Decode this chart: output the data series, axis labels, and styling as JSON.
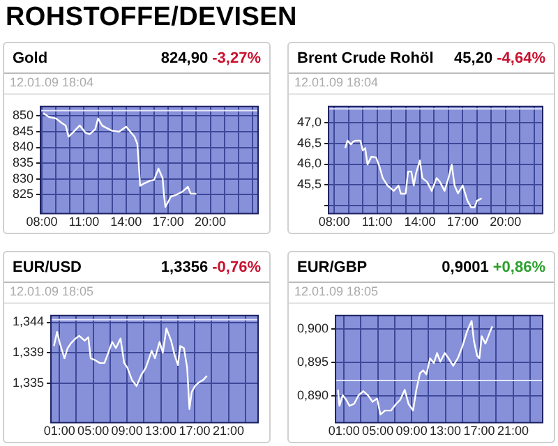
{
  "chart_data": [
    {
      "type": "other",
      "title": "ROHSTOFFE/DEVISEN"
    },
    {
      "type": "line",
      "title": "Gold",
      "subtitle": "12.01.09 18:04",
      "annotations": [
        "824,90",
        "-3,27%"
      ],
      "grid": true,
      "xlim": [
        7.9,
        23.4
      ],
      "xticks": [
        {
          "value": 8,
          "label": "08:00"
        },
        {
          "value": 9,
          "label": null
        },
        {
          "value": 10,
          "label": null
        },
        {
          "value": 11,
          "label": "11:00"
        },
        {
          "value": 12,
          "label": null
        },
        {
          "value": 13,
          "label": null
        },
        {
          "value": 14,
          "label": "14:00"
        },
        {
          "value": 15,
          "label": null
        },
        {
          "value": 16,
          "label": null
        },
        {
          "value": 17,
          "label": "17:00"
        },
        {
          "value": 18,
          "label": null
        },
        {
          "value": 19,
          "label": null
        },
        {
          "value": 20,
          "label": "20:00"
        },
        {
          "value": 21,
          "label": null
        },
        {
          "value": 22,
          "label": null
        },
        {
          "value": 23,
          "label": null
        }
      ],
      "ylim": [
        819,
        853
      ],
      "yticks": [
        825,
        830,
        835,
        840,
        845,
        850
      ],
      "ref_lines": [
        {
          "axis": "y",
          "value": 851.7,
          "color": "#e4e6f6"
        }
      ],
      "x": [
        8.1,
        8.5,
        9.0,
        9.4,
        9.7,
        9.9,
        10.2,
        10.7,
        11.1,
        11.4,
        11.8,
        12.0,
        12.3,
        13.0,
        13.5,
        14.0,
        14.3,
        14.6,
        14.8,
        14.9,
        15.0,
        15.3,
        15.7,
        16.0,
        16.3,
        16.6,
        16.7,
        16.8,
        17.2,
        17.6,
        18.0,
        18.4,
        18.6,
        19.0
      ],
      "series": [
        {
          "color": "#ffffff",
          "values": [
            850.9,
            849.7,
            849.2,
            847.8,
            846.9,
            843.4,
            844.7,
            847.0,
            844.7,
            844.2,
            845.8,
            849.2,
            846.9,
            845.3,
            845.0,
            846.6,
            845.0,
            843.4,
            841.1,
            834.8,
            827.8,
            828.6,
            829.4,
            829.7,
            833.3,
            830.2,
            824.7,
            821.1,
            824.4,
            825.0,
            825.9,
            827.5,
            825.3,
            825.3
          ]
        }
      ]
    },
    {
      "type": "line",
      "title": "Brent Crude Rohöl",
      "subtitle": "12.01.09 18:04",
      "annotations": [
        "45,20",
        "-4,64%"
      ],
      "grid": true,
      "xlim": [
        7.6,
        22.6
      ],
      "xticks": [
        {
          "value": 8,
          "label": "08:00"
        },
        {
          "value": 9,
          "label": null
        },
        {
          "value": 10,
          "label": null
        },
        {
          "value": 11,
          "label": "11:00"
        },
        {
          "value": 12,
          "label": null
        },
        {
          "value": 13,
          "label": null
        },
        {
          "value": 14,
          "label": "14:00"
        },
        {
          "value": 15,
          "label": null
        },
        {
          "value": 16,
          "label": null
        },
        {
          "value": 17,
          "label": "17:00"
        },
        {
          "value": 18,
          "label": null
        },
        {
          "value": 19,
          "label": null
        },
        {
          "value": 20,
          "label": "20:00"
        },
        {
          "value": 21,
          "label": null
        },
        {
          "value": 22,
          "label": null
        }
      ],
      "ylim": [
        44.8,
        47.4
      ],
      "yticks": [
        {
          "value": 45,
          "label": null
        },
        {
          "value": 45.5,
          "label": "45,5"
        },
        {
          "value": 46,
          "label": "46,0"
        },
        {
          "value": 46.5,
          "label": "46,5"
        },
        {
          "value": 47,
          "label": "47,0"
        }
      ],
      "ref_lines": [
        {
          "axis": "y",
          "value": 47.34,
          "color": "#e4e6f6"
        }
      ],
      "x": [
        8.77,
        8.93,
        9.17,
        9.33,
        9.5,
        9.83,
        10.0,
        10.17,
        10.33,
        10.6,
        10.93,
        11.17,
        11.4,
        11.73,
        12.17,
        12.5,
        12.67,
        13.0,
        13.17,
        13.4,
        13.57,
        13.73,
        14.0,
        14.17,
        14.5,
        14.83,
        15.17,
        15.4,
        15.73,
        16.0,
        16.23,
        16.43,
        16.67,
        17.0,
        17.33,
        17.6,
        17.83,
        18.0,
        18.33
      ],
      "series": [
        {
          "color": "#ffffff",
          "values": [
            46.39,
            46.57,
            46.48,
            46.55,
            46.57,
            46.57,
            46.33,
            46.39,
            45.99,
            46.18,
            46.16,
            45.94,
            45.66,
            45.48,
            45.35,
            45.48,
            45.28,
            45.28,
            45.82,
            45.82,
            45.48,
            45.78,
            46.09,
            45.66,
            45.57,
            45.35,
            45.66,
            45.57,
            45.35,
            45.66,
            45.99,
            45.48,
            45.29,
            45.48,
            45.11,
            44.95,
            44.95,
            45.11,
            45.17
          ]
        }
      ]
    },
    {
      "type": "line",
      "title": "EUR/USD",
      "subtitle": "12.01.09 18:05",
      "annotations": [
        "1,3356",
        "-0,76%"
      ],
      "grid": true,
      "xlim": [
        0,
        24.5
      ],
      "xticks": [
        {
          "value": 1,
          "label": "01:00"
        },
        {
          "value": 3,
          "label": null
        },
        {
          "value": 5,
          "label": "05:00"
        },
        {
          "value": 7,
          "label": null
        },
        {
          "value": 9,
          "label": "09:00"
        },
        {
          "value": 11,
          "label": null
        },
        {
          "value": 13,
          "label": "13:00"
        },
        {
          "value": 15,
          "label": null
        },
        {
          "value": 17,
          "label": "17:00"
        },
        {
          "value": 19,
          "label": null
        },
        {
          "value": 21,
          "label": "21:00"
        },
        {
          "value": 23,
          "label": null
        }
      ],
      "ylim": [
        1.3292,
        1.345
      ],
      "yticks": [
        {
          "value": 1.335,
          "label": "1,335"
        },
        {
          "value": 1.3395,
          "label": "1,339"
        },
        {
          "value": 1.344,
          "label": "1,344"
        }
      ],
      "ref_lines": [
        {
          "axis": "y",
          "value": 1.3444,
          "color": "#e4e6f6"
        }
      ],
      "x": [
        0.35,
        0.73,
        1.05,
        1.6,
        1.98,
        2.36,
        2.9,
        3.34,
        3.99,
        4.42,
        4.7,
        5.24,
        5.78,
        6.33,
        6.87,
        7.25,
        7.68,
        8.23,
        8.66,
        9.04,
        9.58,
        10.13,
        10.67,
        11.22,
        11.92,
        12.3,
        12.85,
        13.23,
        13.66,
        14.21,
        14.64,
        15.02,
        15.29,
        15.73,
        16.11,
        16.38,
        16.65,
        17.03,
        17.47,
        18.01,
        18.45
      ],
      "series": [
        {
          "color": "#ffffff",
          "values": [
            1.3405,
            1.3426,
            1.3409,
            1.3387,
            1.3402,
            1.3409,
            1.3416,
            1.342,
            1.3413,
            1.3418,
            1.3387,
            1.3384,
            1.338,
            1.338,
            1.3398,
            1.3411,
            1.3402,
            1.3416,
            1.338,
            1.3373,
            1.3355,
            1.3346,
            1.3362,
            1.3373,
            1.3398,
            1.3387,
            1.3411,
            1.3395,
            1.3431,
            1.3413,
            1.3391,
            1.3377,
            1.3405,
            1.3402,
            1.3373,
            1.3312,
            1.3337,
            1.3346,
            1.3351,
            1.3355,
            1.3361
          ]
        }
      ]
    },
    {
      "type": "line",
      "title": "EUR/GBP",
      "subtitle": "12.01.09 18:05",
      "annotations": [
        "0,9001",
        "+0,86%"
      ],
      "grid": true,
      "xlim": [
        0,
        24.5
      ],
      "xticks": [
        {
          "value": 1,
          "label": "01:00"
        },
        {
          "value": 3,
          "label": null
        },
        {
          "value": 5,
          "label": "05:00"
        },
        {
          "value": 7,
          "label": null
        },
        {
          "value": 9,
          "label": "09:00"
        },
        {
          "value": 11,
          "label": null
        },
        {
          "value": 13,
          "label": "13:00"
        },
        {
          "value": 15,
          "label": null
        },
        {
          "value": 17,
          "label": "17:00"
        },
        {
          "value": 19,
          "label": null
        },
        {
          "value": 21,
          "label": "21:00"
        },
        {
          "value": 23,
          "label": null
        }
      ],
      "ylim": [
        0.886,
        0.902
      ],
      "yticks": [
        {
          "value": 0.89,
          "label": "0,890"
        },
        {
          "value": 0.895,
          "label": "0,895"
        },
        {
          "value": 0.9,
          "label": "0,900"
        }
      ],
      "ref_lines": [
        {
          "axis": "y",
          "value": 0.8923,
          "color": "#e4e6f6"
        }
      ],
      "x": [
        0.29,
        0.46,
        0.84,
        1.27,
        1.65,
        2.2,
        2.74,
        3.29,
        3.83,
        4.38,
        4.92,
        5.31,
        5.85,
        6.56,
        7.1,
        7.65,
        8.19,
        8.63,
        9.17,
        9.56,
        10.0,
        10.37,
        10.75,
        11.19,
        11.63,
        12.01,
        12.39,
        12.93,
        13.37,
        13.92,
        14.46,
        15.01,
        15.55,
        16.1,
        16.37,
        16.75,
        17.02,
        17.29,
        17.73,
        18.28,
        18.55
      ],
      "series": [
        {
          "color": "#ffffff",
          "values": [
            0.8909,
            0.8885,
            0.8901,
            0.8894,
            0.8885,
            0.8888,
            0.8901,
            0.8907,
            0.8901,
            0.8891,
            0.8896,
            0.8872,
            0.8878,
            0.8878,
            0.8887,
            0.8894,
            0.8909,
            0.8888,
            0.8878,
            0.8909,
            0.8934,
            0.8938,
            0.8932,
            0.8956,
            0.8949,
            0.8964,
            0.8951,
            0.8964,
            0.8956,
            0.8945,
            0.8956,
            0.8974,
            0.8996,
            0.9012,
            0.8982,
            0.896,
            0.8956,
            0.8989,
            0.8978,
            0.8996,
            0.9004
          ]
        }
      ]
    }
  ]
}
